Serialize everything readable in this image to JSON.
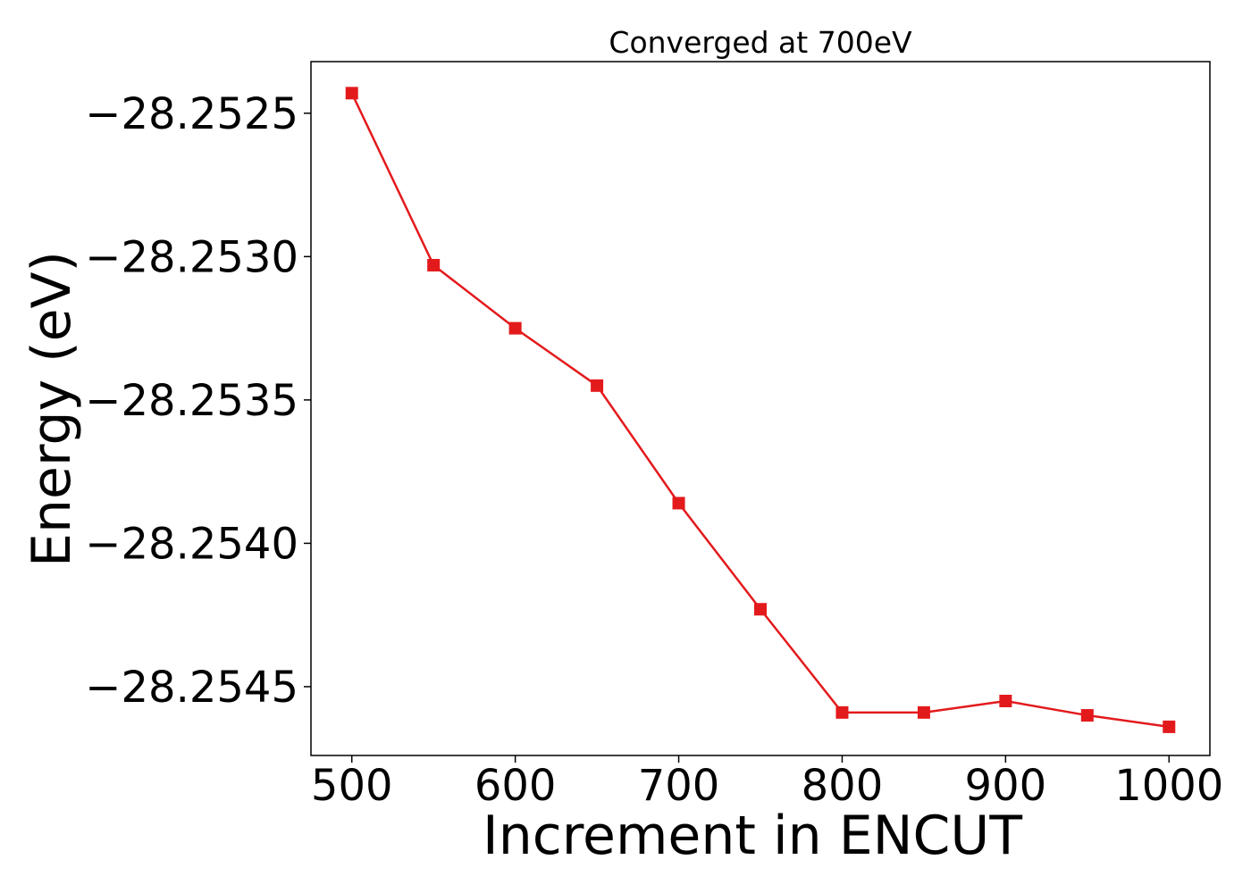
{
  "chart_data": {
    "type": "line",
    "title": "Converged at 700eV",
    "xlabel": "Increment in ENCUT",
    "ylabel": "Energy (eV)",
    "xlim": [
      475,
      1025
    ],
    "ylim": [
      -28.25474,
      -28.25232
    ],
    "xticks": [
      500,
      600,
      700,
      800,
      900,
      1000
    ],
    "yticks": [
      -28.2525,
      -28.253,
      -28.2535,
      -28.254,
      -28.2545
    ],
    "ytick_labels": [
      "−28.2525",
      "−28.2530",
      "−28.2535",
      "−28.2540",
      "−28.2545"
    ],
    "grid": false,
    "legend": null,
    "color": "#e31a1c",
    "marker": "square",
    "series": [
      {
        "x": [
          500,
          550,
          600,
          650,
          700,
          750,
          800,
          850,
          900,
          950,
          1000
        ],
        "y": [
          -28.25243,
          -28.25303,
          -28.25325,
          -28.25345,
          -28.25386,
          -28.25423,
          -28.25459,
          -28.25459,
          -28.25455,
          -28.2546,
          -28.25464
        ]
      }
    ]
  }
}
